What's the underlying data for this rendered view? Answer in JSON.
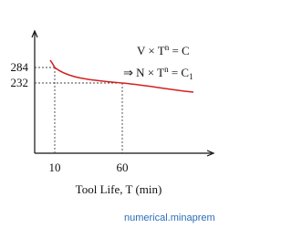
{
  "equation_1": {
    "lhs": "V × T",
    "exp": "n",
    "rhs": " = C"
  },
  "equation_2": {
    "lhs": "⇒ N × T",
    "exp": "n",
    "rhs": " = C",
    "sub": "1"
  },
  "y_ticks": [
    "284",
    "232"
  ],
  "x_ticks": [
    "10",
    "60"
  ],
  "x_axis_label": "Tool Life, T (min)",
  "footer": "numerical.minaprem"
}
